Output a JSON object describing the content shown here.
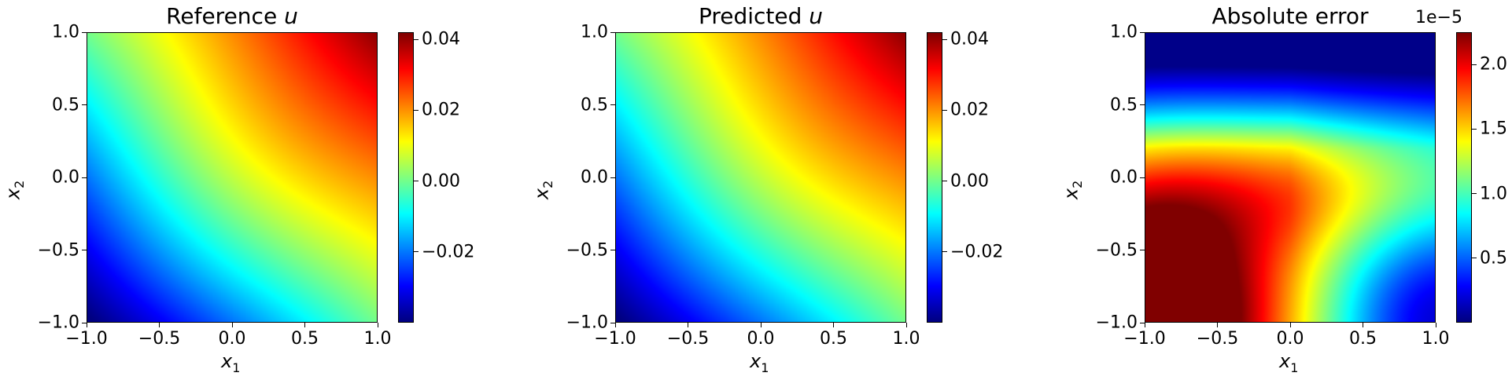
{
  "chart_data": [
    {
      "type": "heatmap",
      "title": "Reference u",
      "title_prefix": "Reference ",
      "title_var": "u",
      "xlabel_var": "x",
      "xlabel_sub": "1",
      "ylabel_var": "x",
      "ylabel_sub": "2",
      "xlim": [
        -1.0,
        1.0
      ],
      "ylim": [
        -1.0,
        1.0
      ],
      "xticks": [
        -1.0,
        -0.5,
        0.0,
        0.5,
        1.0
      ],
      "xtick_labels": [
        "−1.0",
        "−0.5",
        "0.0",
        "0.5",
        "1.0"
      ],
      "yticks": [
        -1.0,
        -0.5,
        0.0,
        0.5,
        1.0
      ],
      "ytick_labels": [
        "−1.0",
        "−0.5",
        "0.0",
        "0.5",
        "1.0"
      ],
      "colormap": "jet",
      "field": "u = 0.01*(sin(pi*x1)*sin(pi*x2)) + 0.02*(x1 + x2), approx.",
      "clim": [
        -0.04,
        0.042
      ],
      "cbar_ticks": [
        -0.02,
        0.0,
        0.02,
        0.04
      ],
      "cbar_tick_labels": [
        "−0.02",
        "0.00",
        "0.02",
        "0.04"
      ],
      "cbar_exponent": ""
    },
    {
      "type": "heatmap",
      "title": "Predicted u",
      "title_prefix": "Predicted ",
      "title_var": "u",
      "xlabel_var": "x",
      "xlabel_sub": "1",
      "ylabel_var": "x",
      "ylabel_sub": "2",
      "xlim": [
        -1.0,
        1.0
      ],
      "ylim": [
        -1.0,
        1.0
      ],
      "xticks": [
        -1.0,
        -0.5,
        0.0,
        0.5,
        1.0
      ],
      "xtick_labels": [
        "−1.0",
        "−0.5",
        "0.0",
        "0.5",
        "1.0"
      ],
      "yticks": [
        -1.0,
        -0.5,
        0.0,
        0.5,
        1.0
      ],
      "ytick_labels": [
        "−1.0",
        "−0.5",
        "0.0",
        "0.5",
        "1.0"
      ],
      "colormap": "jet",
      "field": "same as reference",
      "clim": [
        -0.04,
        0.042
      ],
      "cbar_ticks": [
        -0.02,
        0.0,
        0.02,
        0.04
      ],
      "cbar_tick_labels": [
        "−0.02",
        "0.00",
        "0.02",
        "0.04"
      ],
      "cbar_exponent": ""
    },
    {
      "type": "heatmap",
      "title": "Absolute error",
      "title_prefix": "Absolute error",
      "title_var": "",
      "xlabel_var": "x",
      "xlabel_sub": "1",
      "ylabel_var": "x",
      "ylabel_sub": "2",
      "xlim": [
        -1.0,
        1.0
      ],
      "ylim": [
        -1.0,
        1.0
      ],
      "xticks": [
        -1.0,
        -0.5,
        0.0,
        0.5,
        1.0
      ],
      "xtick_labels": [
        "−1.0",
        "−0.5",
        "0.0",
        "0.5",
        "1.0"
      ],
      "yticks": [
        -1.0,
        -0.5,
        0.0,
        0.5,
        1.0
      ],
      "ytick_labels": [
        "−1.0",
        "−0.5",
        "0.0",
        "0.5",
        "1.0"
      ],
      "colormap": "jet",
      "field": "error peaks (~2.2e-5) near bottom-left corner, minimal at top edge and bottom-right",
      "clim": [
        0.0,
        2.25
      ],
      "cbar_ticks": [
        0.5,
        1.0,
        1.5,
        2.0
      ],
      "cbar_tick_labels": [
        "0.5",
        "1.0",
        "1.5",
        "2.0"
      ],
      "cbar_exponent": "1e−5"
    }
  ]
}
